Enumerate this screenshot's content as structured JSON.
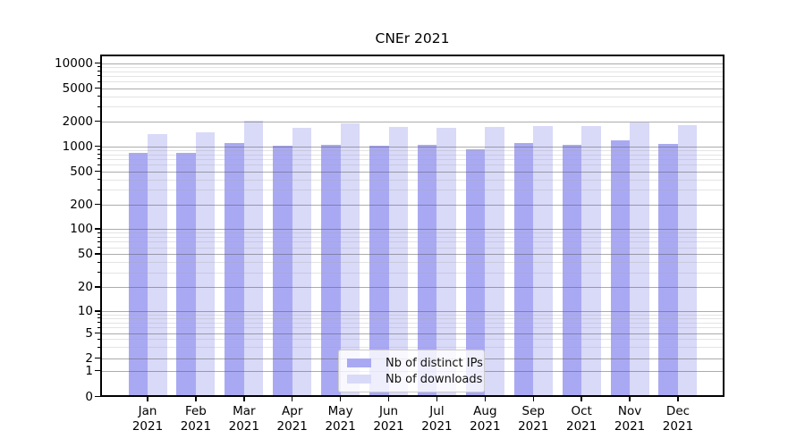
{
  "colors": {
    "distinct_ips_bar": "#a9a9f3",
    "downloads_bar": "#d9d9f8",
    "axis": "#000000",
    "background": "#ffffff"
  },
  "chart_data": {
    "type": "bar",
    "title": "CNEr 2021",
    "yscale": "symlog",
    "ylim": [
      0,
      12600
    ],
    "grid": "on",
    "legend_position": "lower center",
    "year": "2021",
    "categories": [
      "Jan",
      "Feb",
      "Mar",
      "Apr",
      "May",
      "Jun",
      "Jul",
      "Aug",
      "Sep",
      "Oct",
      "Nov",
      "Dec"
    ],
    "y_ticks": [
      0,
      1,
      2,
      5,
      10,
      20,
      50,
      100,
      200,
      500,
      1000,
      2000,
      5000,
      10000
    ],
    "series": [
      {
        "name": "Nb of distinct IPs",
        "color": "#a9a9f3",
        "values": [
          840,
          830,
          1080,
          1010,
          1040,
          1020,
          1040,
          920,
          1090,
          1050,
          1180,
          1070
        ]
      },
      {
        "name": "Nb of downloads",
        "color": "#d9d9f8",
        "values": [
          1390,
          1480,
          2010,
          1680,
          1860,
          1710,
          1680,
          1710,
          1740,
          1740,
          1940,
          1780
        ]
      }
    ]
  },
  "legend": {
    "items": [
      {
        "label": "Nb of distinct IPs",
        "color": "#a9a9f3"
      },
      {
        "label": "Nb of downloads",
        "color": "#d9d9f8"
      }
    ]
  }
}
